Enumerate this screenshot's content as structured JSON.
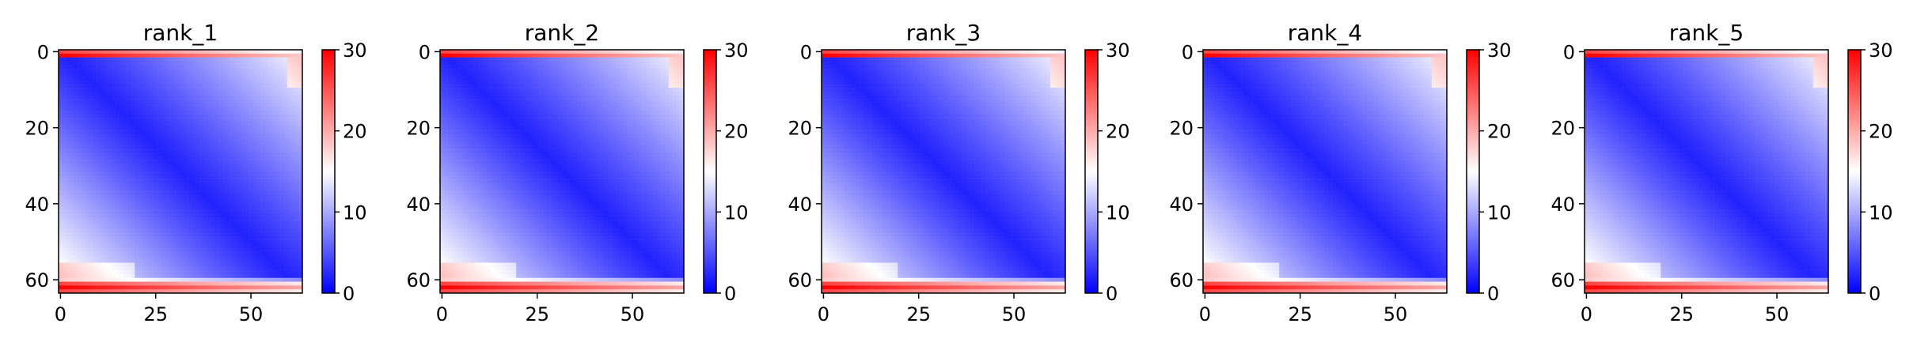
{
  "chart_data": [
    {
      "type": "heatmap",
      "title": "rank_1",
      "xlabel": "",
      "ylabel": "",
      "matrix_size": 64,
      "xlim": [
        0,
        63
      ],
      "ylim": [
        63,
        0
      ],
      "x_ticks": [
        0,
        25,
        50
      ],
      "y_ticks": [
        0,
        20,
        40,
        60
      ],
      "colorbar": {
        "range": [
          0,
          30
        ],
        "ticks": [
          0,
          10,
          20,
          30
        ],
        "colormap": "bwr"
      },
      "pattern": {
        "diag_low": 2,
        "off_diag_high": 15,
        "edge_rows_value": 30,
        "edge_rows": [
          0,
          1,
          61,
          62,
          63
        ]
      }
    },
    {
      "type": "heatmap",
      "title": "rank_2",
      "xlabel": "",
      "ylabel": "",
      "matrix_size": 64,
      "xlim": [
        0,
        63
      ],
      "ylim": [
        63,
        0
      ],
      "x_ticks": [
        0,
        25,
        50
      ],
      "y_ticks": [
        0,
        20,
        40,
        60
      ],
      "colorbar": {
        "range": [
          0,
          30
        ],
        "ticks": [
          0,
          10,
          20,
          30
        ],
        "colormap": "bwr"
      },
      "pattern": {
        "diag_low": 2,
        "off_diag_high": 15,
        "edge_rows_value": 30,
        "edge_rows": [
          0,
          1,
          61,
          62,
          63
        ]
      }
    },
    {
      "type": "heatmap",
      "title": "rank_3",
      "xlabel": "",
      "ylabel": "",
      "matrix_size": 64,
      "xlim": [
        0,
        63
      ],
      "ylim": [
        63,
        0
      ],
      "x_ticks": [
        0,
        25,
        50
      ],
      "y_ticks": [
        0,
        20,
        40,
        60
      ],
      "colorbar": {
        "range": [
          0,
          30
        ],
        "ticks": [
          0,
          10,
          20,
          30
        ],
        "colormap": "bwr"
      },
      "pattern": {
        "diag_low": 2,
        "off_diag_high": 15,
        "edge_rows_value": 30,
        "edge_rows": [
          0,
          1,
          61,
          62,
          63
        ]
      }
    },
    {
      "type": "heatmap",
      "title": "rank_4",
      "xlabel": "",
      "ylabel": "",
      "matrix_size": 64,
      "xlim": [
        0,
        63
      ],
      "ylim": [
        63,
        0
      ],
      "x_ticks": [
        0,
        25,
        50
      ],
      "y_ticks": [
        0,
        20,
        40,
        60
      ],
      "colorbar": {
        "range": [
          0,
          30
        ],
        "ticks": [
          0,
          10,
          20,
          30
        ],
        "colormap": "bwr"
      },
      "pattern": {
        "diag_low": 2,
        "off_diag_high": 15,
        "edge_rows_value": 30,
        "edge_rows": [
          0,
          1,
          61,
          62,
          63
        ]
      }
    },
    {
      "type": "heatmap",
      "title": "rank_5",
      "xlabel": "",
      "ylabel": "",
      "matrix_size": 64,
      "xlim": [
        0,
        63
      ],
      "ylim": [
        63,
        0
      ],
      "x_ticks": [
        0,
        25,
        50
      ],
      "y_ticks": [
        0,
        20,
        40,
        60
      ],
      "colorbar": {
        "range": [
          0,
          30
        ],
        "ticks": [
          0,
          10,
          20,
          30
        ],
        "colormap": "bwr"
      },
      "pattern": {
        "diag_low": 2,
        "off_diag_high": 15,
        "edge_rows_value": 30,
        "edge_rows": [
          0,
          1,
          61,
          62,
          63
        ]
      }
    }
  ],
  "colors": {
    "low": "#0000ff",
    "mid": "#ffffff",
    "high": "#ff0000"
  }
}
